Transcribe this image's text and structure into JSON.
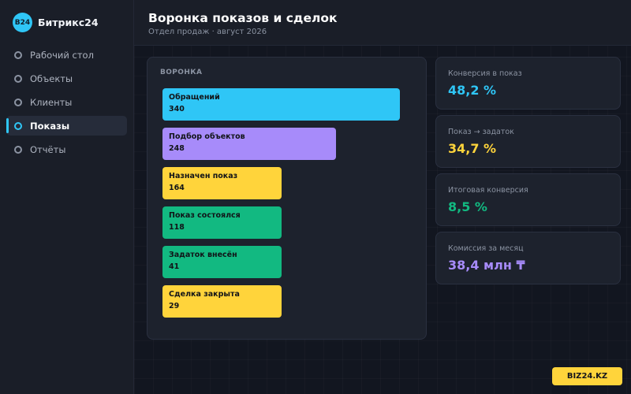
{
  "brand": {
    "logo_text": "B24",
    "name": "Битрикс24",
    "accent": "#2fc6f6"
  },
  "sidebar": {
    "items": [
      {
        "label": "Рабочий стол",
        "active": false
      },
      {
        "label": "Объекты",
        "active": false
      },
      {
        "label": "Клиенты",
        "active": false
      },
      {
        "label": "Показы",
        "active": true
      },
      {
        "label": "Отчёты",
        "active": false
      }
    ]
  },
  "header": {
    "title": "Воронка показов и сделок",
    "subtitle": "Отдел продаж · август 2026"
  },
  "funnel": {
    "label": "ВОРОНКА",
    "stages": [
      {
        "name": "Обращений",
        "value": 340,
        "color": "#2fc6f6"
      },
      {
        "name": "Подбор объектов",
        "value": 248,
        "color": "#a78bfa"
      },
      {
        "name": "Назначен показ",
        "value": 164,
        "color": "#ffd43b"
      },
      {
        "name": "Показ состоялся",
        "value": 118,
        "color": "#12b981"
      },
      {
        "name": "Задаток внесён",
        "value": 41,
        "color": "#12b981"
      },
      {
        "name": "Сделка закрыта",
        "value": 29,
        "color": "#ffd43b"
      }
    ]
  },
  "kpis": [
    {
      "label": "Конверсия в показ",
      "value": "48,2 %",
      "color": "#2fc6f6"
    },
    {
      "label": "Показ → задаток",
      "value": "34,7 %",
      "color": "#ffd43b"
    },
    {
      "label": "Итоговая конверсия",
      "value": "8,5 %",
      "color": "#12b981"
    },
    {
      "label": "Комиссия за месяц",
      "value": "38,4 млн ₸",
      "color": "#a78bfa"
    }
  ],
  "footer": {
    "badge": "BIZ24.KZ"
  }
}
